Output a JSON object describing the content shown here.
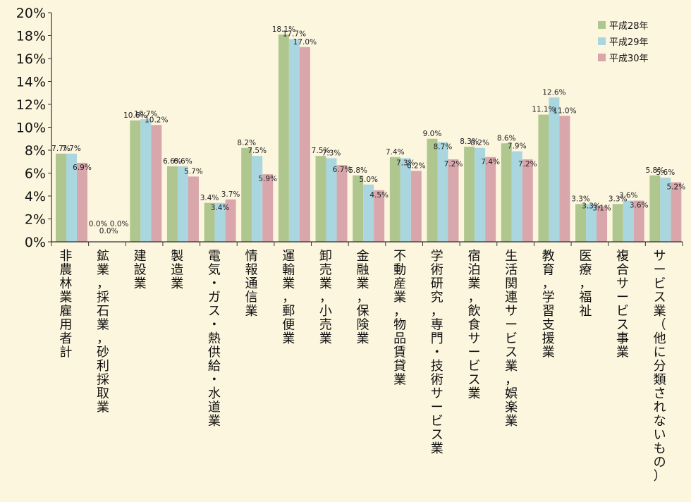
{
  "chart_data": {
    "type": "bar",
    "title": "",
    "xlabel": "",
    "ylabel": "",
    "ylim": [
      0,
      20
    ],
    "y_ticks": [
      "0%",
      "2%",
      "4%",
      "6%",
      "8%",
      "10%",
      "12%",
      "14%",
      "16%",
      "18%",
      "20%"
    ],
    "grid": false,
    "legend_position": "top-right",
    "categories": [
      "非農林業雇用者計",
      "鉱業，採石業，砂利採取業",
      "建設業",
      "製造業",
      "電気・ガス・熱供給・水道業",
      "情報通信業",
      "運輸業，郵便業",
      "卸売業，小売業",
      "金融業，保険業",
      "不動産業，物品賃貸業",
      "学術研究，専門・技術サービス業",
      "宿泊業，飲食サービス業",
      "生活関連サービス業，娯楽業",
      "教育，学習支援業",
      "医療，福祉",
      "複合サービス事業",
      "サービス業（他に分類されないもの）"
    ],
    "series": [
      {
        "name": "平成28年",
        "color": "#afc78f",
        "values": [
          7.7,
          0.0,
          10.6,
          6.6,
          3.4,
          8.2,
          18.1,
          7.5,
          5.8,
          7.4,
          9.0,
          8.3,
          8.6,
          11.1,
          3.3,
          3.3,
          5.8
        ],
        "labels": [
          "7.7%",
          "0.0%",
          "10.6%",
          "6.6%",
          "3.4%",
          "8.2%",
          "18.1%",
          "7.5%",
          "5.8%",
          "7.4%",
          "9.0%",
          "8.3%",
          "8.6%",
          "11.1%",
          "3.3%",
          "3.3%",
          "5.8%"
        ]
      },
      {
        "name": "平成29年",
        "color": "#a9d6df",
        "values": [
          7.7,
          0.0,
          10.7,
          6.6,
          3.4,
          7.5,
          17.7,
          7.3,
          5.0,
          7.3,
          8.7,
          8.2,
          7.9,
          12.6,
          3.3,
          3.6,
          5.6
        ],
        "labels": [
          "7.7%",
          "0.0%",
          "10.7%",
          "6.6%",
          "3.4%",
          "7.5%",
          "17.7%",
          "7.3%",
          "5.0%",
          "7.3%",
          "8.7%",
          "8.2%",
          "7.9%",
          "12.6%",
          "3.3%",
          "3.6%",
          "5.6%"
        ]
      },
      {
        "name": "平成30年",
        "color": "#d9a6ab",
        "values": [
          6.9,
          0.0,
          10.2,
          5.7,
          3.7,
          5.9,
          17.0,
          6.7,
          4.5,
          6.2,
          7.2,
          7.4,
          7.2,
          11.0,
          3.1,
          3.6,
          5.2
        ],
        "labels": [
          "6.9%",
          "0.0%",
          "10.2%",
          "5.7%",
          "3.7%",
          "5.9%",
          "17.0%",
          "6.7%",
          "4.5%",
          "6.2%",
          "7.2%",
          "7.4%",
          "7.2%",
          "11.0%",
          "3.1%",
          "3.6%",
          "5.2%"
        ]
      }
    ]
  }
}
